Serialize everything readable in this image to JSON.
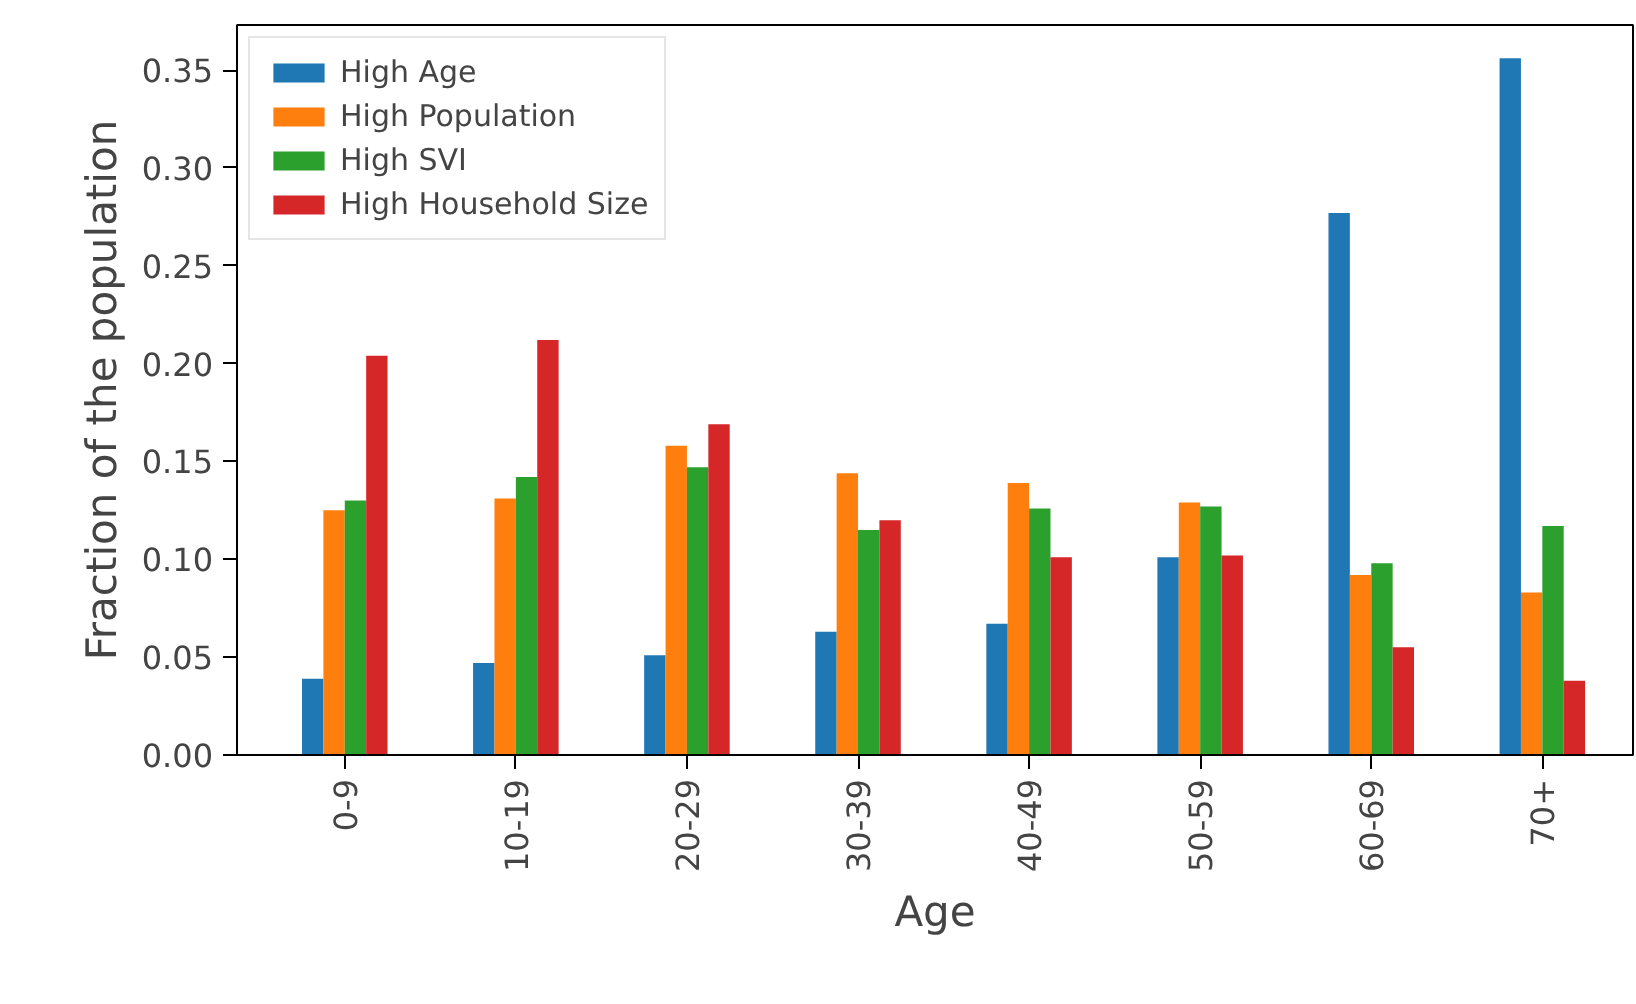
{
  "chart_data": {
    "type": "bar",
    "xlabel": "Age",
    "ylabel": "Fraction of the population",
    "categories": [
      "0-9",
      "10-19",
      "20-29",
      "30-39",
      "40-49",
      "50-59",
      "60-69",
      "70+"
    ],
    "series": [
      {
        "name": "High Age",
        "color": "#1f77b4",
        "values": [
          0.039,
          0.047,
          0.051,
          0.063,
          0.067,
          0.101,
          0.277,
          0.356
        ]
      },
      {
        "name": "High Population",
        "color": "#ff7f0e",
        "values": [
          0.125,
          0.131,
          0.158,
          0.144,
          0.139,
          0.129,
          0.092,
          0.083
        ]
      },
      {
        "name": "High SVI",
        "color": "#2ca02c",
        "values": [
          0.13,
          0.142,
          0.147,
          0.115,
          0.126,
          0.127,
          0.098,
          0.117
        ]
      },
      {
        "name": "High Household Size",
        "color": "#d62728",
        "values": [
          0.204,
          0.212,
          0.169,
          0.12,
          0.101,
          0.102,
          0.055,
          0.038
        ]
      }
    ],
    "ylim": [
      0,
      0.373
    ],
    "yticks": [
      {
        "value": 0,
        "label": "0.00"
      },
      {
        "value": 0.05,
        "label": "0.05"
      },
      {
        "value": 0.1,
        "label": "0.10"
      },
      {
        "value": 0.15,
        "label": "0.15"
      },
      {
        "value": 0.2,
        "label": "0.20"
      },
      {
        "value": 0.25,
        "label": "0.25"
      },
      {
        "value": 0.3,
        "label": "0.30"
      },
      {
        "value": 0.35,
        "label": "0.35"
      }
    ],
    "grid": false,
    "legend": "top left"
  }
}
